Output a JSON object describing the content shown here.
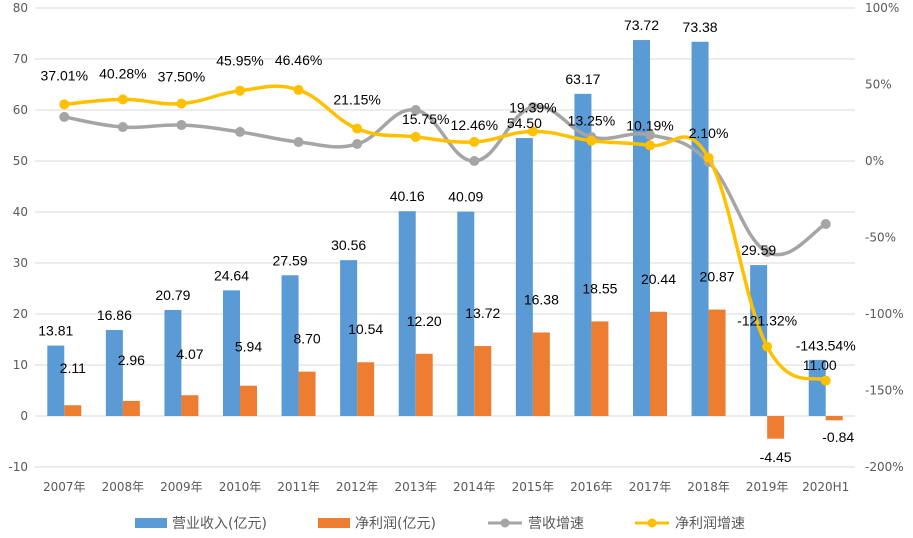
{
  "chart_data": {
    "type": "bar",
    "title": "",
    "categories": [
      "2007年",
      "2008年",
      "2009年",
      "2010年",
      "2011年",
      "2012年",
      "2013年",
      "2014年",
      "2015年",
      "2016年",
      "2017年",
      "2018年",
      "2019年",
      "2020H1"
    ],
    "series": [
      {
        "name": "营业收入(亿元)",
        "type": "bar",
        "axis": "left",
        "color": "#5B9BD5",
        "values": [
          13.81,
          16.86,
          20.79,
          24.64,
          27.59,
          30.56,
          40.16,
          40.09,
          54.5,
          63.17,
          73.72,
          73.38,
          29.59,
          11.0
        ],
        "labels": [
          "13.81",
          "16.86",
          "20.79",
          "24.64",
          "27.59",
          "30.56",
          "40.16",
          "40.09",
          "54.50",
          "63.17",
          "73.72",
          "73.38",
          "29.59",
          "11.00"
        ]
      },
      {
        "name": "净利润(亿元)",
        "type": "bar",
        "axis": "left",
        "color": "#ED7D31",
        "values": [
          2.11,
          2.96,
          4.07,
          5.94,
          8.7,
          10.54,
          12.2,
          13.72,
          16.38,
          18.55,
          20.44,
          20.87,
          -4.45,
          -0.84
        ],
        "labels": [
          "2.11",
          "2.96",
          "4.07",
          "5.94",
          "8.70",
          "10.54",
          "12.20",
          "13.72",
          "16.38",
          "18.55",
          "20.44",
          "20.87",
          "-4.45",
          "-0.84"
        ]
      },
      {
        "name": "营收增速",
        "type": "line",
        "axis": "right",
        "color": "#A5A5A5",
        "values": [
          28.8,
          22.2,
          23.5,
          19.0,
          12.4,
          11.1,
          33.3,
          0.0,
          35.3,
          15.7,
          17.0,
          -0.7,
          -59.5,
          -41.2
        ]
      },
      {
        "name": "净利润增速",
        "type": "line",
        "axis": "right",
        "color": "#FFC000",
        "values": [
          37.01,
          40.28,
          37.5,
          45.95,
          46.46,
          21.15,
          15.75,
          12.46,
          19.39,
          13.25,
          10.19,
          2.1,
          -121.32,
          -143.54
        ],
        "labels": [
          "37.01%",
          "40.28%",
          "37.50%",
          "45.95%",
          "46.46%",
          "21.15%",
          "15.75%",
          "12.46%",
          "19.39%",
          "13.25%",
          "10.19%",
          "2.10%",
          "-121.32%",
          "-143.54%"
        ]
      }
    ],
    "y_left": {
      "min": -10,
      "max": 80,
      "step": 10,
      "ticks": [
        "80",
        "70",
        "60",
        "50",
        "40",
        "30",
        "20",
        "10",
        "0",
        "-10"
      ]
    },
    "y_right": {
      "min": -200,
      "max": 100,
      "step": 50,
      "ticks": [
        "100%",
        "50%",
        "0%",
        "-50%",
        "-100%",
        "-150%",
        "-200%"
      ]
    },
    "xlabel": "",
    "ylabel": "",
    "grid": true,
    "legend_position": "bottom"
  }
}
